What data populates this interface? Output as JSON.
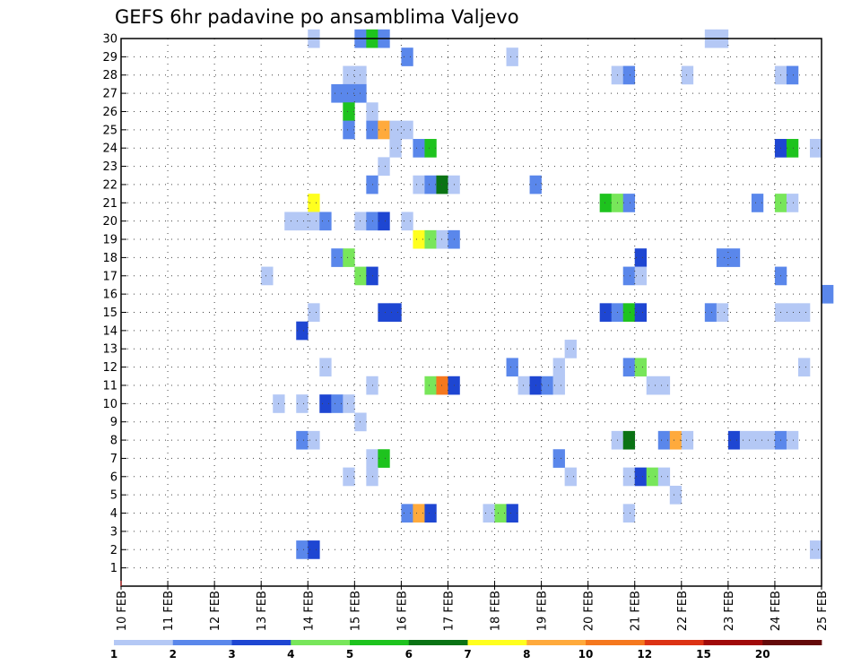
{
  "chart_data": {
    "type": "heatmap",
    "title": "GEFS 6hr padavine po ansamblima Valjevo",
    "xlabel": "",
    "ylabel": "",
    "x_ticks": [
      "10 FEB",
      "11 FEB",
      "12 FEB",
      "13 FEB",
      "14 FEB",
      "15 FEB",
      "16 FEB",
      "17 FEB",
      "18 FEB",
      "19 FEB",
      "20 FEB",
      "21 FEB",
      "22 FEB",
      "23 FEB",
      "24 FEB",
      "25 FEB"
    ],
    "y_ticks": [
      1,
      2,
      3,
      4,
      5,
      6,
      7,
      8,
      9,
      10,
      11,
      12,
      13,
      14,
      15,
      16,
      17,
      18,
      19,
      20,
      21,
      22,
      23,
      24,
      25,
      26,
      27,
      28,
      29,
      30
    ],
    "xlim_days": [
      0,
      15
    ],
    "ylim": [
      0,
      30
    ],
    "grid": true,
    "colorbar": {
      "position": "bottom",
      "labels": [
        "1",
        "2",
        "3",
        "4",
        "5",
        "6",
        "7",
        "8",
        "10",
        "12",
        "15",
        "20"
      ],
      "colors": [
        "#b4c8f5",
        "#5a87eb",
        "#1e46d2",
        "#78e65a",
        "#1ec31e",
        "#0a7314",
        "#ffff1e",
        "#ffaa3c",
        "#f5781e",
        "#dc3214",
        "#a00a0a",
        "#640a0a"
      ]
    },
    "cells": [
      [
        30,
        4,
        0
      ],
      [
        30,
        5,
        1
      ],
      [
        30,
        5.25,
        4
      ],
      [
        30,
        5.5,
        1
      ],
      [
        30,
        12.5,
        0
      ],
      [
        30,
        12.75,
        0
      ],
      [
        29,
        6,
        1
      ],
      [
        29,
        8.25,
        0
      ],
      [
        28,
        4.75,
        0
      ],
      [
        28,
        5,
        0
      ],
      [
        28,
        10.5,
        0
      ],
      [
        28,
        10.75,
        1
      ],
      [
        28,
        12,
        0
      ],
      [
        28,
        14,
        0
      ],
      [
        28,
        14.25,
        1
      ],
      [
        27,
        4.5,
        1
      ],
      [
        27,
        4.75,
        1
      ],
      [
        27,
        5,
        1
      ],
      [
        26,
        4.75,
        4
      ],
      [
        26,
        5.25,
        0
      ],
      [
        25,
        4.75,
        1
      ],
      [
        25,
        5.25,
        1
      ],
      [
        25,
        5.5,
        7
      ],
      [
        25,
        5.75,
        0
      ],
      [
        25,
        6,
        0
      ],
      [
        24,
        5.75,
        0
      ],
      [
        24,
        6.25,
        1
      ],
      [
        24,
        6.5,
        4
      ],
      [
        24,
        14,
        2
      ],
      [
        24,
        14.25,
        4
      ],
      [
        24,
        14.75,
        0
      ],
      [
        23,
        5.5,
        0
      ],
      [
        22,
        5.25,
        1
      ],
      [
        22,
        6.25,
        0
      ],
      [
        22,
        6.5,
        1
      ],
      [
        22,
        6.75,
        5
      ],
      [
        22,
        7,
        0
      ],
      [
        22,
        8.75,
        1
      ],
      [
        21,
        4,
        6
      ],
      [
        21,
        10.25,
        4
      ],
      [
        21,
        10.5,
        3
      ],
      [
        21,
        10.75,
        1
      ],
      [
        21,
        13.5,
        1
      ],
      [
        21,
        14,
        3
      ],
      [
        21,
        14.25,
        0
      ],
      [
        20,
        3.5,
        0
      ],
      [
        20,
        3.75,
        0
      ],
      [
        20,
        4,
        0
      ],
      [
        20,
        4.25,
        1
      ],
      [
        20,
        5,
        0
      ],
      [
        20,
        5.25,
        1
      ],
      [
        20,
        5.5,
        2
      ],
      [
        20,
        6,
        0
      ],
      [
        19,
        6.25,
        6
      ],
      [
        19,
        6.5,
        3
      ],
      [
        19,
        6.75,
        0
      ],
      [
        19,
        7,
        1
      ],
      [
        18,
        4.5,
        1
      ],
      [
        18,
        4.75,
        3
      ],
      [
        18,
        11,
        2
      ],
      [
        18,
        12.75,
        1
      ],
      [
        18,
        13,
        1
      ],
      [
        17,
        3,
        0
      ],
      [
        17,
        5,
        3
      ],
      [
        17,
        5.25,
        2
      ],
      [
        17,
        10.75,
        1
      ],
      [
        17,
        11,
        0
      ],
      [
        17,
        14,
        1
      ],
      [
        16,
        15,
        1
      ],
      [
        15,
        4,
        0
      ],
      [
        15,
        5.5,
        2
      ],
      [
        15,
        5.75,
        2
      ],
      [
        15,
        10.25,
        2
      ],
      [
        15,
        10.5,
        1
      ],
      [
        15,
        10.75,
        4
      ],
      [
        15,
        11,
        2
      ],
      [
        15,
        12.5,
        1
      ],
      [
        15,
        12.75,
        0
      ],
      [
        15,
        14,
        0
      ],
      [
        15,
        14.25,
        0
      ],
      [
        15,
        14.5,
        0
      ],
      [
        14,
        3.75,
        2
      ],
      [
        13,
        9.5,
        0
      ],
      [
        12,
        4.25,
        0
      ],
      [
        12,
        8.25,
        1
      ],
      [
        12,
        9.25,
        0
      ],
      [
        12,
        10.75,
        1
      ],
      [
        12,
        11,
        3
      ],
      [
        12,
        14.5,
        0
      ],
      [
        11,
        5.25,
        0
      ],
      [
        11,
        6.5,
        3
      ],
      [
        11,
        6.75,
        8
      ],
      [
        11,
        7,
        2
      ],
      [
        11,
        8.5,
        0
      ],
      [
        11,
        8.75,
        2
      ],
      [
        11,
        9,
        1
      ],
      [
        11,
        9.25,
        0
      ],
      [
        11,
        11.25,
        0
      ],
      [
        11,
        11.5,
        0
      ],
      [
        10,
        3.25,
        0
      ],
      [
        10,
        3.75,
        0
      ],
      [
        10,
        4.25,
        2
      ],
      [
        10,
        4.5,
        1
      ],
      [
        10,
        4.75,
        0
      ],
      [
        9,
        5,
        0
      ],
      [
        8,
        3.75,
        1
      ],
      [
        8,
        4,
        0
      ],
      [
        8,
        10.5,
        0
      ],
      [
        8,
        10.75,
        5
      ],
      [
        8,
        11.5,
        1
      ],
      [
        8,
        11.75,
        7
      ],
      [
        8,
        12,
        0
      ],
      [
        8,
        13,
        2
      ],
      [
        8,
        13.25,
        0
      ],
      [
        8,
        13.5,
        0
      ],
      [
        8,
        13.75,
        0
      ],
      [
        8,
        14,
        1
      ],
      [
        8,
        14.25,
        0
      ],
      [
        7,
        5.25,
        0
      ],
      [
        7,
        5.5,
        4
      ],
      [
        7,
        9.25,
        1
      ],
      [
        6,
        4.75,
        0
      ],
      [
        6,
        5.25,
        0
      ],
      [
        6,
        9.5,
        0
      ],
      [
        6,
        10.75,
        0
      ],
      [
        6,
        11,
        2
      ],
      [
        6,
        11.25,
        3
      ],
      [
        6,
        11.5,
        0
      ],
      [
        5,
        11.75,
        0
      ],
      [
        4,
        6,
        1
      ],
      [
        4,
        6.25,
        7
      ],
      [
        4,
        6.5,
        2
      ],
      [
        4,
        7.75,
        0
      ],
      [
        4,
        8,
        3
      ],
      [
        4,
        8.25,
        2
      ],
      [
        4,
        10.75,
        0
      ],
      [
        2,
        3.75,
        1
      ],
      [
        2,
        4,
        2
      ],
      [
        2,
        14.75,
        0
      ]
    ]
  }
}
